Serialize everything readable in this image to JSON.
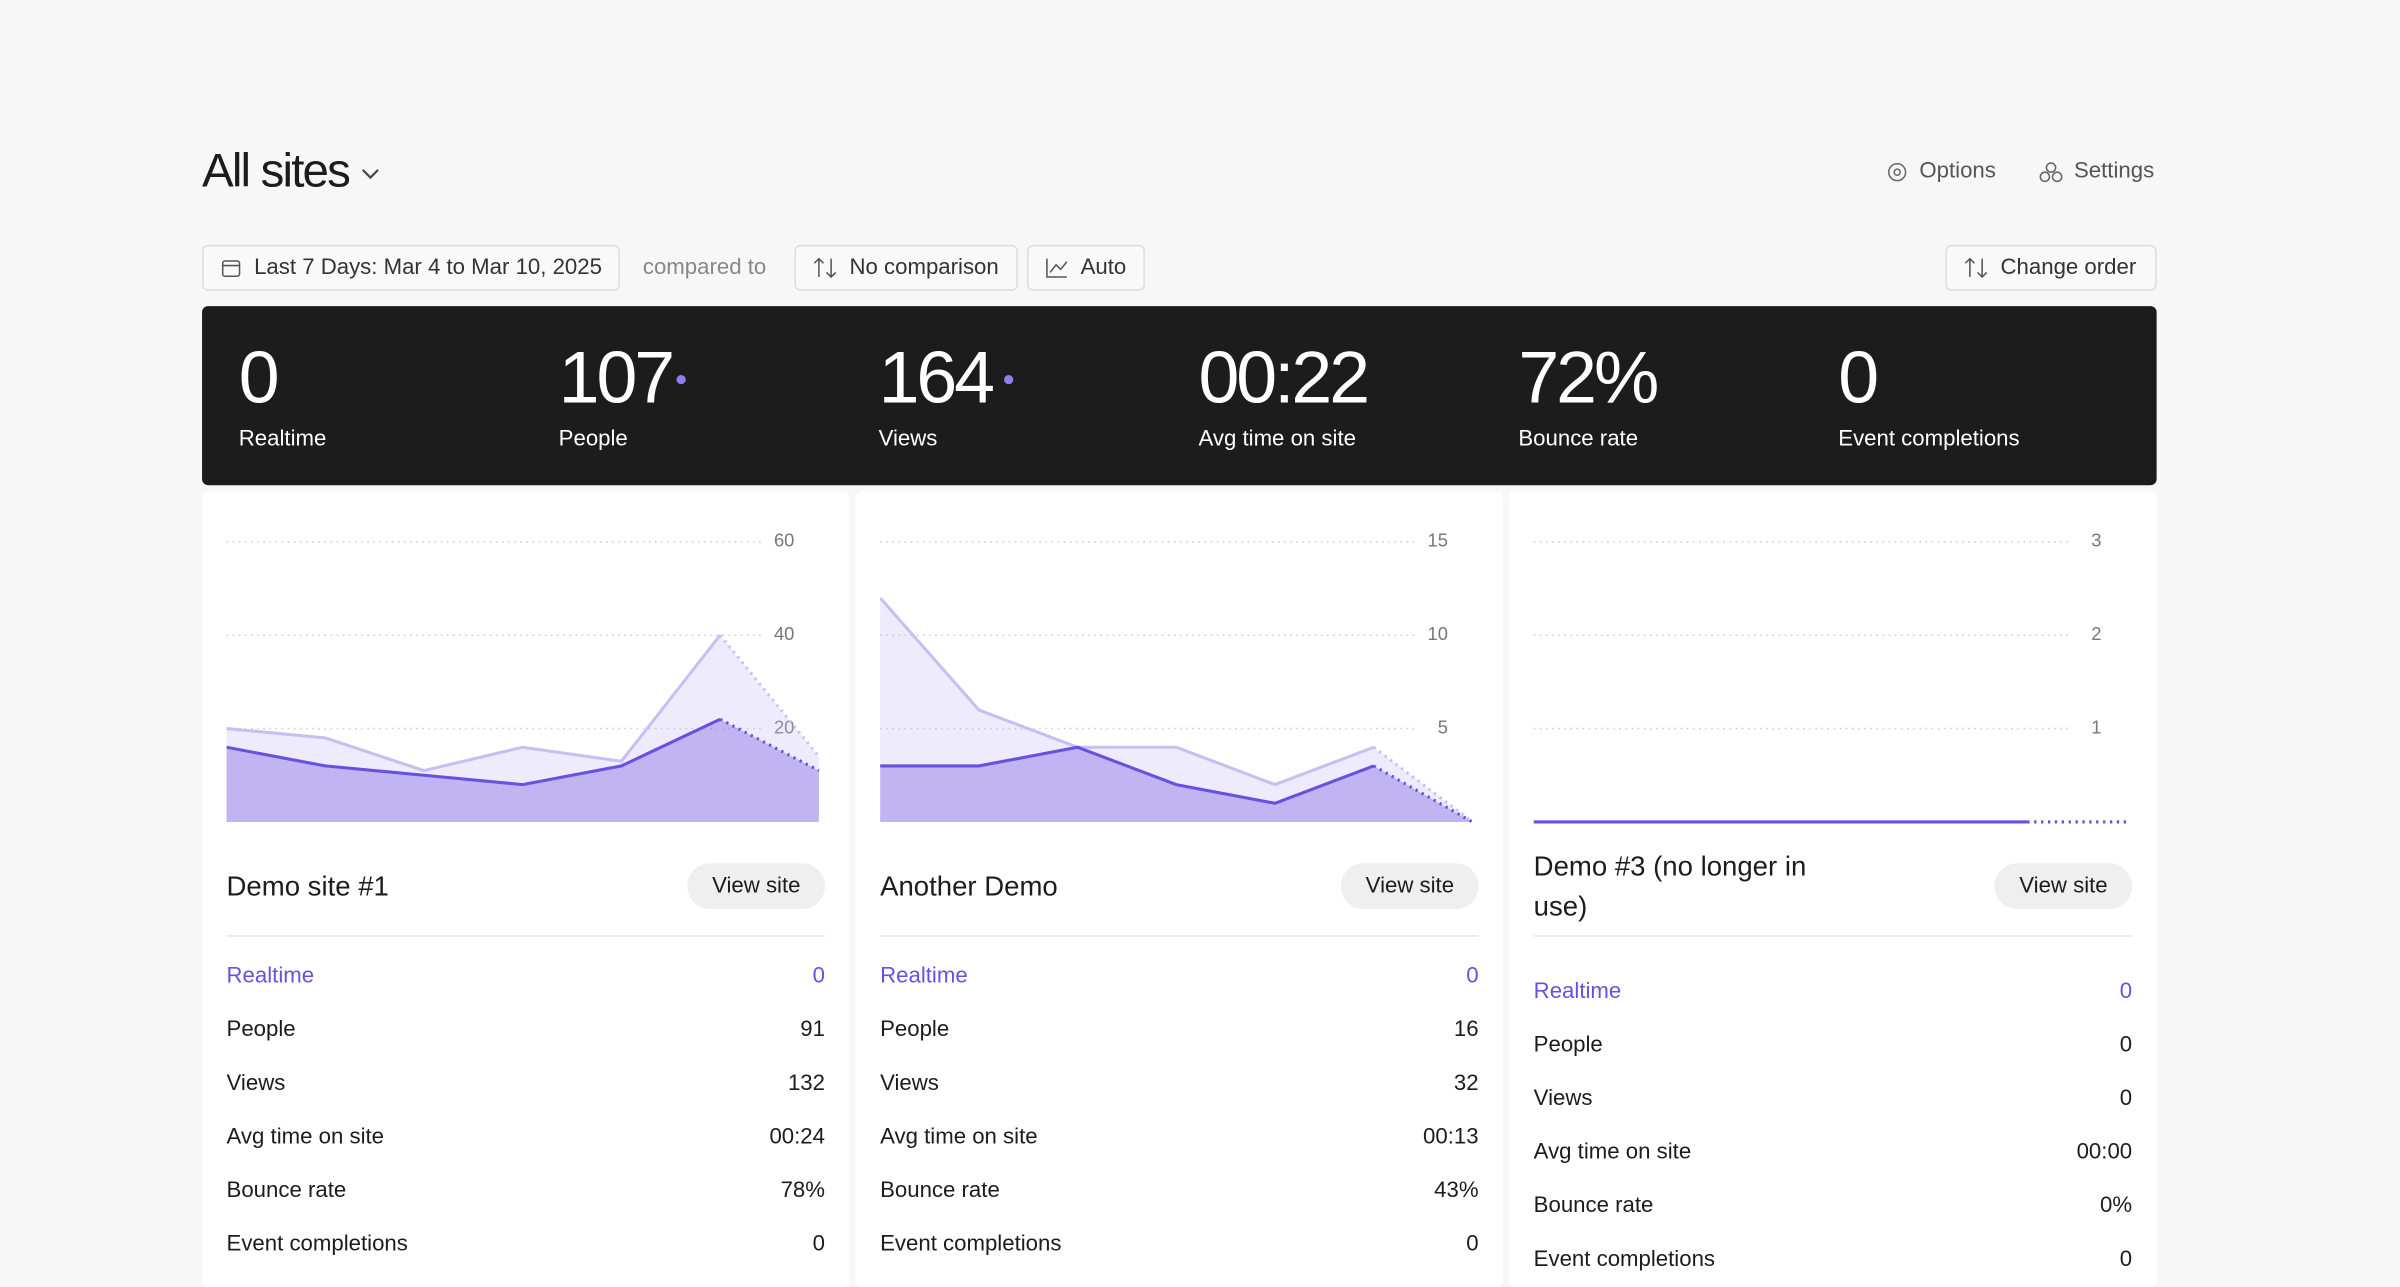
{
  "header": {
    "title": "All sites",
    "options": "Options",
    "settings": "Settings"
  },
  "toolbar": {
    "date_range": "Last 7 Days: Mar 4 to Mar 10, 2025",
    "compared_to": "compared to",
    "comparison": "No comparison",
    "interval": "Auto",
    "change_order": "Change order"
  },
  "summary": [
    {
      "value": "0",
      "label": "Realtime"
    },
    {
      "value": "107",
      "label": "People"
    },
    {
      "value": "164",
      "label": "Views"
    },
    {
      "value": "00:22",
      "label": "Avg time on site"
    },
    {
      "value": "72%",
      "label": "Bounce rate"
    },
    {
      "value": "0",
      "label": "Event completions"
    }
  ],
  "sites": [
    {
      "name": "Demo site #1",
      "button": "View site",
      "chart_data": {
        "type": "area",
        "ylim": [
          0,
          60
        ],
        "yticks": [
          20,
          40,
          60
        ],
        "grid": true,
        "series": [
          {
            "color": "#c7bff4",
            "values": [
              20,
              18,
              11,
              16,
              13,
              40,
              14
            ]
          },
          {
            "color": "#6a4fe0",
            "values": [
              16,
              12,
              10,
              8,
              12,
              22,
              11
            ]
          }
        ]
      },
      "stats": [
        {
          "label": "Realtime",
          "value": "0"
        },
        {
          "label": "People",
          "value": "91"
        },
        {
          "label": "Views",
          "value": "132"
        },
        {
          "label": "Avg time on site",
          "value": "00:24"
        },
        {
          "label": "Bounce rate",
          "value": "78%"
        },
        {
          "label": "Event completions",
          "value": "0"
        }
      ]
    },
    {
      "name": "Another Demo",
      "button": "View site",
      "chart_data": {
        "type": "area",
        "ylim": [
          0,
          15
        ],
        "yticks": [
          5,
          10,
          15
        ],
        "grid": true,
        "series": [
          {
            "color": "#c7bff4",
            "values": [
              12,
              6,
              4,
              4,
              2,
              4,
              0
            ]
          },
          {
            "color": "#6a4fe0",
            "values": [
              3,
              3,
              4,
              2,
              1,
              3,
              0
            ]
          }
        ]
      },
      "stats": [
        {
          "label": "Realtime",
          "value": "0"
        },
        {
          "label": "People",
          "value": "16"
        },
        {
          "label": "Views",
          "value": "32"
        },
        {
          "label": "Avg time on site",
          "value": "00:13"
        },
        {
          "label": "Bounce rate",
          "value": "43%"
        },
        {
          "label": "Event completions",
          "value": "0"
        }
      ]
    },
    {
      "name": "Demo #3 (no longer in use)",
      "button": "View site",
      "chart_data": {
        "type": "area",
        "ylim": [
          0,
          3
        ],
        "yticks": [
          1,
          2,
          3
        ],
        "grid": true,
        "series": [
          {
            "color": "#c7bff4",
            "values": [
              0,
              0,
              0,
              0,
              0,
              0,
              0
            ]
          },
          {
            "color": "#6a4fe0",
            "values": [
              0,
              0,
              0,
              0,
              0,
              0,
              0
            ]
          }
        ]
      },
      "stats": [
        {
          "label": "Realtime",
          "value": "0"
        },
        {
          "label": "People",
          "value": "0"
        },
        {
          "label": "Views",
          "value": "0"
        },
        {
          "label": "Avg time on site",
          "value": "00:00"
        },
        {
          "label": "Bounce rate",
          "value": "0%"
        },
        {
          "label": "Event completions",
          "value": "0"
        }
      ]
    }
  ]
}
